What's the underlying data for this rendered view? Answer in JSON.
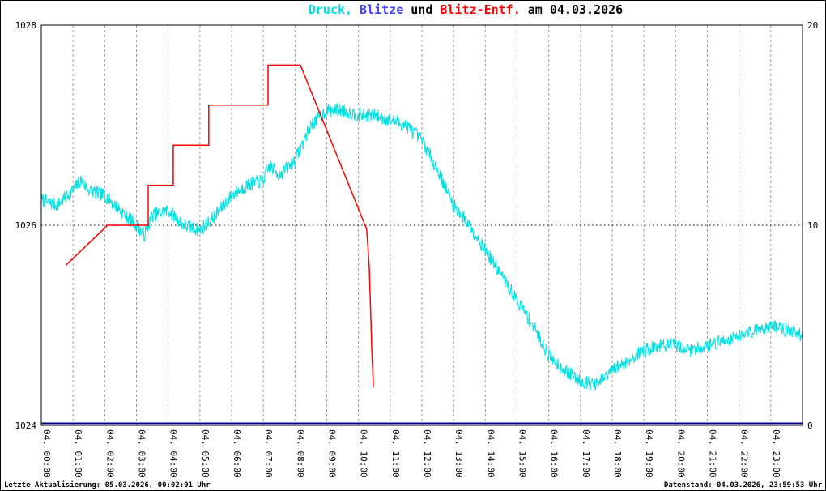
{
  "title": {
    "full": "Druck, Blitze und Blitz-Entf. am 04.03.2026",
    "parts": [
      {
        "text": "Druck,",
        "color": "#00dede"
      },
      {
        "text": " Blitze",
        "color": "#4444ff"
      },
      {
        "text": " und ",
        "color": "#000000"
      },
      {
        "text": "Blitz-Entf.",
        "color": "#ff0000"
      },
      {
        "text": " am 04.03.2026",
        "color": "#000000"
      }
    ]
  },
  "footer": {
    "left": "Letzte Aktualisierung: 05.03.2026, 00:02:01 Uhr",
    "right": "Datenstand: 04.03.2026, 23:59:53 Uhr"
  },
  "chart_data": {
    "type": "line",
    "title": "Druck, Blitze und Blitz-Entf. am 04.03.2026",
    "grid": true,
    "legend": "none",
    "noise_seed": 7,
    "colors": {
      "v_grid": "#9a9a9a",
      "h_grid": "#000000",
      "axis": "#000000"
    },
    "x_axis": {
      "unit": "hours",
      "max_hour": 24,
      "labels": [
        "04. 00:00",
        "04. 01:00",
        "04. 02:00",
        "04. 03:00",
        "04. 04:00",
        "04. 05:00",
        "04. 06:00",
        "04. 07:00",
        "04. 08:00",
        "04. 09:00",
        "04. 10:00",
        "04. 11:00",
        "04. 12:00",
        "04. 13:00",
        "04. 14:00",
        "04. 15:00",
        "04. 16:00",
        "04. 17:00",
        "04. 18:00",
        "04. 19:00",
        "04. 20:00",
        "04. 21:00",
        "04. 22:00",
        "04. 23:00"
      ]
    },
    "left_axis": {
      "min": 1024,
      "max": 1028,
      "ticks": [
        {
          "value": 1028,
          "label": "1028"
        },
        {
          "value": 1026,
          "label": "1026"
        },
        {
          "value": 1024,
          "label": "1024"
        }
      ],
      "grid_values": [
        1026
      ]
    },
    "right_axis": {
      "min": 0,
      "max": 20,
      "ticks": [
        {
          "value": 20,
          "label": "20"
        },
        {
          "value": 10,
          "label": "10"
        },
        {
          "value": 0,
          "label": "0"
        }
      ]
    },
    "series": [
      {
        "id": "druck",
        "name": "Druck",
        "color": "#00e2e2",
        "axis": "left",
        "width": 1,
        "render": "noisy",
        "noise_amp": 0.07,
        "step_hours": 0.015,
        "anchors": [
          [
            0,
            1026.25
          ],
          [
            0.5,
            1026.2
          ],
          [
            1,
            1026.35
          ],
          [
            1.25,
            1026.45
          ],
          [
            1.5,
            1026.35
          ],
          [
            2,
            1026.3
          ],
          [
            2.5,
            1026.15
          ],
          [
            3,
            1026.0
          ],
          [
            3.25,
            1025.9
          ],
          [
            3.5,
            1026.1
          ],
          [
            4,
            1026.15
          ],
          [
            4.5,
            1026.0
          ],
          [
            5,
            1025.95
          ],
          [
            5.5,
            1026.1
          ],
          [
            6,
            1026.3
          ],
          [
            6.5,
            1026.4
          ],
          [
            7,
            1026.45
          ],
          [
            7.2,
            1026.6
          ],
          [
            7.5,
            1026.5
          ],
          [
            8,
            1026.65
          ],
          [
            8.5,
            1027.0
          ],
          [
            9,
            1027.15
          ],
          [
            9.5,
            1027.15
          ],
          [
            10,
            1027.1
          ],
          [
            10.5,
            1027.1
          ],
          [
            11,
            1027.05
          ],
          [
            11.5,
            1027.0
          ],
          [
            12,
            1026.85
          ],
          [
            12.5,
            1026.55
          ],
          [
            13,
            1026.2
          ],
          [
            13.5,
            1026.0
          ],
          [
            14,
            1025.75
          ],
          [
            14.5,
            1025.5
          ],
          [
            15,
            1025.25
          ],
          [
            15.5,
            1025.0
          ],
          [
            16,
            1024.7
          ],
          [
            16.5,
            1024.55
          ],
          [
            17,
            1024.45
          ],
          [
            17.5,
            1024.4
          ],
          [
            18,
            1024.55
          ],
          [
            18.5,
            1024.65
          ],
          [
            19,
            1024.75
          ],
          [
            19.5,
            1024.8
          ],
          [
            20,
            1024.8
          ],
          [
            20.5,
            1024.75
          ],
          [
            21,
            1024.8
          ],
          [
            21.5,
            1024.85
          ],
          [
            22,
            1024.9
          ],
          [
            22.5,
            1024.95
          ],
          [
            23,
            1025.0
          ],
          [
            23.5,
            1024.95
          ],
          [
            24,
            1024.9
          ]
        ]
      },
      {
        "id": "blitze",
        "name": "Blitze",
        "color": "#000080",
        "axis": "right",
        "width": 2,
        "render": "line",
        "points": [
          [
            0,
            0.1
          ],
          [
            24,
            0.1
          ]
        ]
      },
      {
        "id": "blitz-entf",
        "name": "Blitz-Entf.",
        "color": "#ff0000",
        "axis": "right",
        "width": 1.5,
        "render": "line",
        "points": [
          [
            0.77,
            8
          ],
          [
            2.09,
            10
          ],
          [
            3.37,
            10
          ],
          [
            3.37,
            12
          ],
          [
            4.16,
            12
          ],
          [
            4.16,
            14
          ],
          [
            5.28,
            14
          ],
          [
            5.28,
            16
          ],
          [
            7.15,
            16
          ],
          [
            7.15,
            18
          ],
          [
            8.17,
            18
          ],
          [
            10.26,
            9.8
          ],
          [
            10.34,
            7.9
          ],
          [
            10.42,
            3.8
          ],
          [
            10.47,
            1.9
          ]
        ]
      }
    ]
  }
}
